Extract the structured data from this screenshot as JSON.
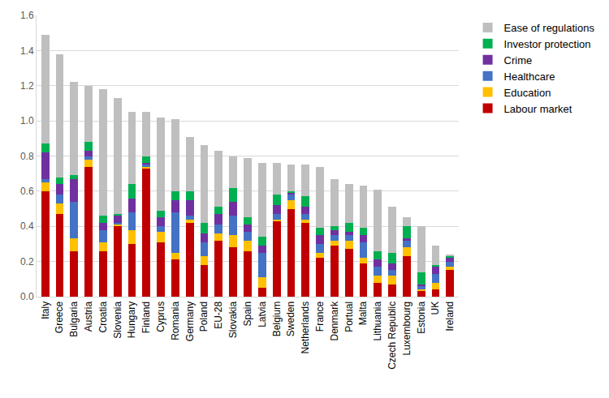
{
  "chart_data": {
    "type": "bar",
    "stacked": true,
    "grid": true,
    "legend": "right",
    "categories": [
      "Italy",
      "Greece",
      "Bulgaria",
      "Austria",
      "Croatia",
      "Slovenia",
      "Hungary",
      "Finland",
      "Cyprus",
      "Romania",
      "Germany",
      "Poland",
      "EU-28",
      "Slovakia",
      "Spain",
      "Latvia",
      "Belgium",
      "Sweden",
      "Netherlands",
      "France",
      "Denmark",
      "Portual",
      "Malta",
      "Lithuania",
      "Czech Republic",
      "Luxembourg",
      "Estonia",
      "UK",
      "Ireland"
    ],
    "ylim": [
      0,
      1.6
    ],
    "yticks": [
      {
        "value": 0,
        "label": "0.0"
      },
      0.2,
      0.4,
      0.6,
      0.8,
      {
        "value": 1,
        "label": "1.0"
      },
      1.2,
      1.4,
      1.6
    ],
    "series": [
      {
        "name": "Labour market",
        "color": "#c00000",
        "values": [
          0.6,
          0.47,
          0.26,
          0.74,
          0.26,
          0.4,
          0.3,
          0.73,
          0.31,
          0.21,
          0.42,
          0.18,
          0.32,
          0.28,
          0.26,
          0.05,
          0.43,
          0.5,
          0.42,
          0.22,
          0.29,
          0.27,
          0.19,
          0.08,
          0.07,
          0.23,
          0.03,
          0.04,
          0.15
        ]
      },
      {
        "name": "Education",
        "color": "#ffc000",
        "values": [
          0.05,
          0.06,
          0.07,
          0.04,
          0.05,
          0.01,
          0.08,
          0.01,
          0.06,
          0.04,
          0.02,
          0.05,
          0.04,
          0.07,
          0.06,
          0.06,
          0.01,
          0.05,
          0.02,
          0.03,
          0.03,
          0.05,
          0.03,
          0.04,
          0.05,
          0.05,
          0.01,
          0.04,
          0.02
        ]
      },
      {
        "name": "Healthcare",
        "color": "#4472c4",
        "values": [
          0.02,
          0.05,
          0.21,
          0.02,
          0.07,
          0.01,
          0.1,
          0.01,
          0.03,
          0.23,
          0.02,
          0.08,
          0.05,
          0.11,
          0.05,
          0.14,
          0.03,
          0.03,
          0.03,
          0.05,
          0.03,
          0.03,
          0.09,
          0.05,
          0.03,
          0.04,
          0.02,
          0.05,
          0.03
        ]
      },
      {
        "name": "Crime",
        "color": "#7030a0",
        "values": [
          0.15,
          0.06,
          0.13,
          0.03,
          0.04,
          0.04,
          0.08,
          0.01,
          0.05,
          0.07,
          0.09,
          0.05,
          0.06,
          0.08,
          0.04,
          0.04,
          0.05,
          0.01,
          0.04,
          0.05,
          0.03,
          0.02,
          0.04,
          0.04,
          0.04,
          0.01,
          0.01,
          0.04,
          0.02
        ]
      },
      {
        "name": "Investor protection",
        "color": "#00b050",
        "values": [
          0.05,
          0.04,
          0.02,
          0.05,
          0.04,
          0.01,
          0.08,
          0.04,
          0.04,
          0.05,
          0.05,
          0.06,
          0.04,
          0.08,
          0.04,
          0.05,
          0.06,
          0.01,
          0.06,
          0.04,
          0.02,
          0.05,
          0.04,
          0.05,
          0.06,
          0.07,
          0.07,
          0.01,
          0.01
        ]
      },
      {
        "name": "Ease of regulations",
        "color": "#bfbfbf",
        "values": [
          0.62,
          0.7,
          0.53,
          0.32,
          0.72,
          0.66,
          0.41,
          0.25,
          0.53,
          0.41,
          0.31,
          0.44,
          0.32,
          0.18,
          0.34,
          0.42,
          0.18,
          0.15,
          0.18,
          0.35,
          0.27,
          0.22,
          0.24,
          0.35,
          0.26,
          0.05,
          0.26,
          0.11,
          0.01
        ]
      }
    ]
  }
}
